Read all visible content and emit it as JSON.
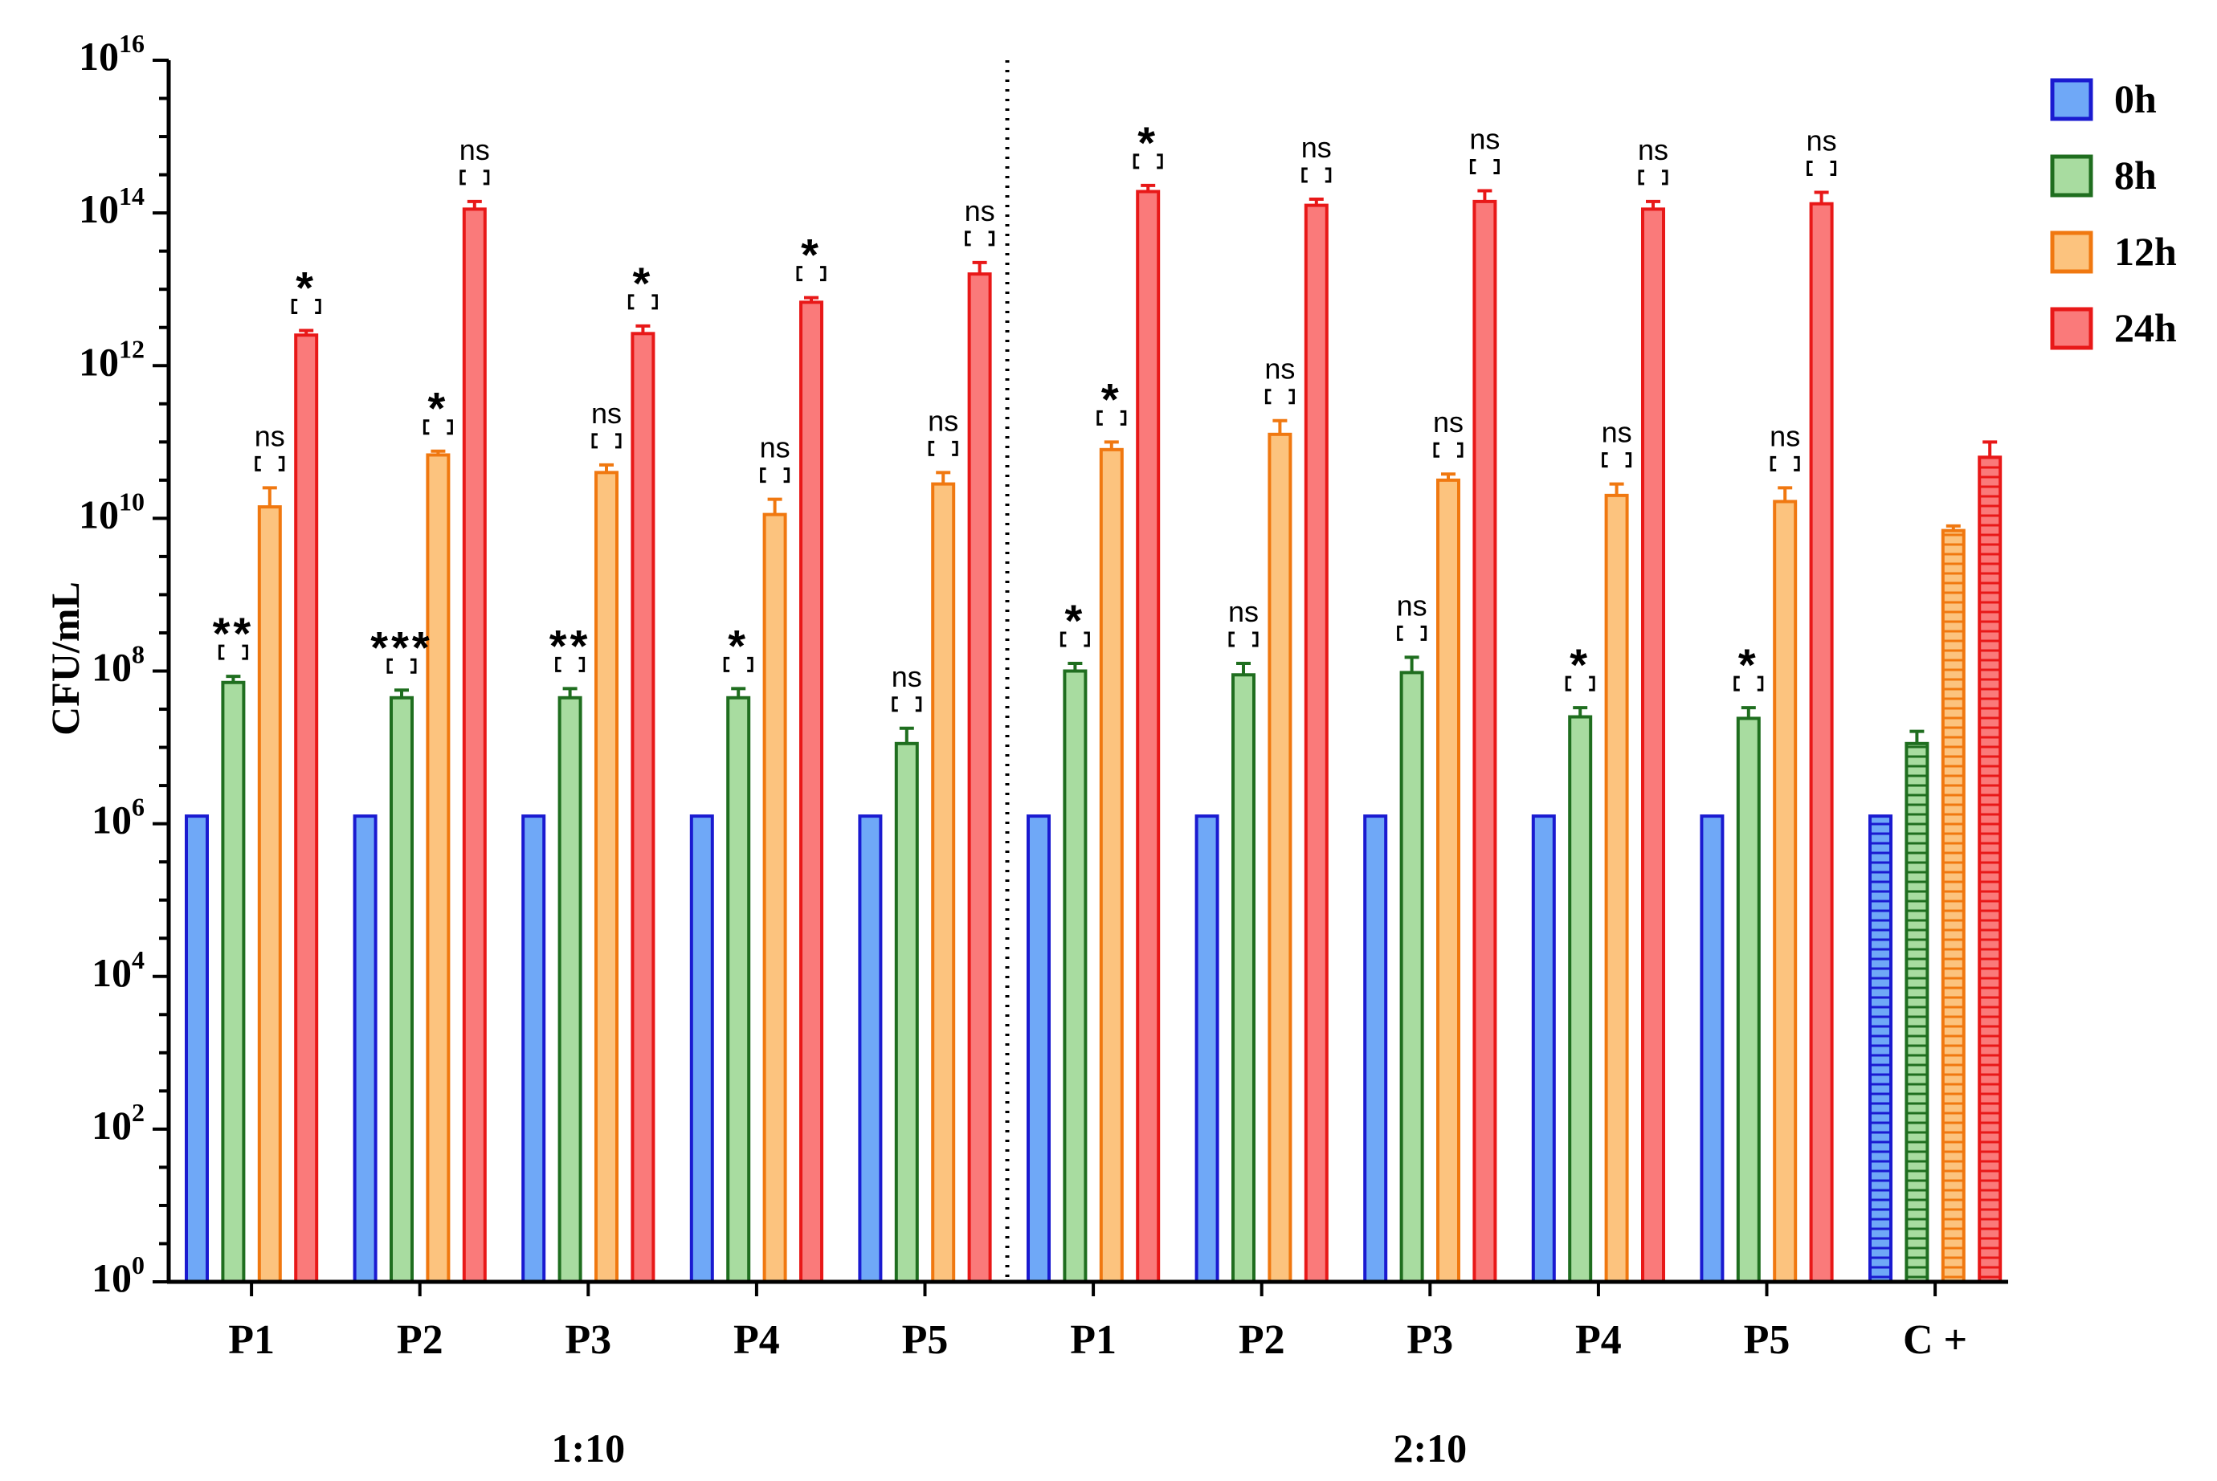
{
  "chart_data": {
    "type": "bar",
    "yscale": "log",
    "ylabel": "CFU/mL",
    "ylim_exponents": [
      0,
      16
    ],
    "ytick_base": "10",
    "ytick_exponents": [
      "0",
      "2",
      "4",
      "6",
      "8",
      "10",
      "12",
      "14",
      "16"
    ],
    "categories": [
      "P1",
      "P2",
      "P3",
      "P4",
      "P5",
      "P1",
      "P2",
      "P3",
      "P4",
      "P5",
      "C +"
    ],
    "groups": [
      {
        "label": "1:10",
        "categories": [
          0,
          1,
          2,
          3,
          4
        ]
      },
      {
        "label": "2:10",
        "categories": [
          5,
          6,
          7,
          8,
          9
        ]
      }
    ],
    "legend": {
      "position": "top-right",
      "items": [
        {
          "label": "0h",
          "fill": "#6fa8f7",
          "stroke": "#1a1ad0"
        },
        {
          "label": "8h",
          "fill": "#a8dca0",
          "stroke": "#1f6e1f"
        },
        {
          "label": "12h",
          "fill": "#fcc37e",
          "stroke": "#f07810"
        },
        {
          "label": "24h",
          "fill": "#fa7a7a",
          "stroke": "#e81818"
        }
      ]
    },
    "series": [
      {
        "name": "0h",
        "log10_values": [
          6.1,
          6.1,
          6.1,
          6.1,
          6.1,
          6.1,
          6.1,
          6.1,
          6.1,
          6.1,
          6.1
        ],
        "log10_errors": [
          0,
          0,
          0,
          0,
          0,
          0,
          0,
          0,
          0,
          0,
          0
        ]
      },
      {
        "name": "8h",
        "log10_values": [
          7.85,
          7.65,
          7.65,
          7.65,
          7.05,
          8.0,
          7.95,
          7.98,
          7.4,
          7.38,
          7.05
        ],
        "log10_errors": [
          0.08,
          0.1,
          0.12,
          0.12,
          0.2,
          0.1,
          0.15,
          0.2,
          0.12,
          0.14,
          0.16
        ]
      },
      {
        "name": "12h",
        "log10_values": [
          10.15,
          10.83,
          10.6,
          10.05,
          10.45,
          10.9,
          11.1,
          10.5,
          10.3,
          10.22,
          9.84
        ],
        "log10_errors": [
          0.25,
          0.05,
          0.1,
          0.2,
          0.15,
          0.1,
          0.18,
          0.08,
          0.15,
          0.18,
          0.06
        ]
      },
      {
        "name": "24h",
        "log10_values": [
          12.4,
          14.05,
          12.42,
          12.83,
          13.2,
          14.28,
          14.1,
          14.15,
          14.05,
          14.12,
          10.8
        ],
        "log10_errors": [
          0.06,
          0.1,
          0.1,
          0.06,
          0.15,
          0.08,
          0.08,
          0.14,
          0.1,
          0.15,
          0.2
        ]
      }
    ],
    "hatched_category": 10,
    "annotations": {
      "8h": [
        "**",
        "***",
        "**",
        "*",
        "ns",
        "*",
        "ns",
        "ns",
        "*",
        "*",
        ""
      ],
      "12h": [
        "ns",
        "*",
        "ns",
        "ns",
        "ns",
        "*",
        "ns",
        "ns",
        "ns",
        "ns",
        ""
      ],
      "24h": [
        "*",
        "ns",
        "*",
        "*",
        "ns",
        "*",
        "ns",
        "ns",
        "ns",
        "ns",
        ""
      ]
    }
  }
}
